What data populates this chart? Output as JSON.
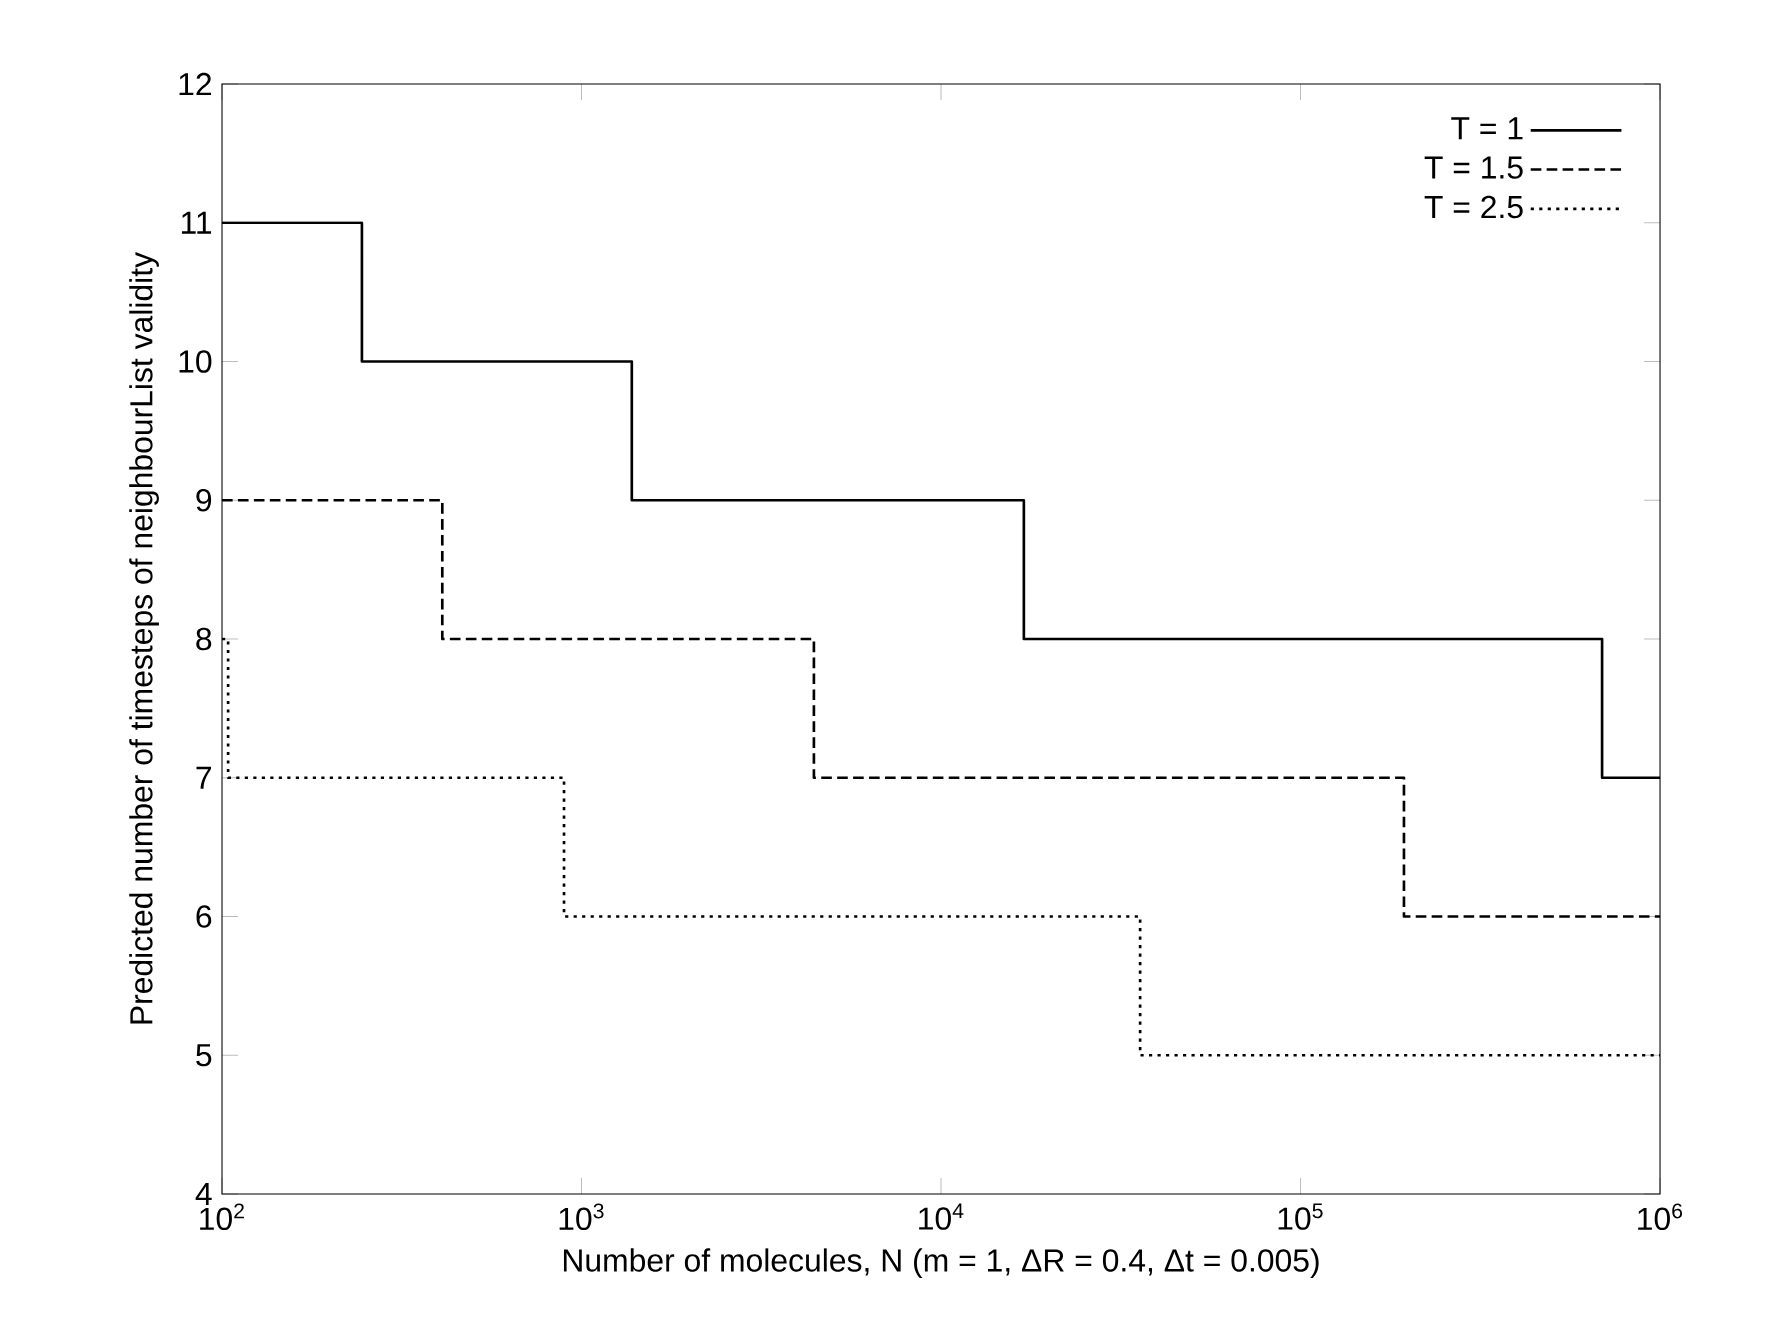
{
  "chart_data": {
    "type": "step",
    "xlabel": "Number of molecules, N  (m = 1, ΔR = 0.4, Δt = 0.005)",
    "ylabel": "Predicted number of timesteps of neighbourList validity",
    "log": "x",
    "xlim": [
      100,
      1000000
    ],
    "ylim": [
      4,
      12
    ],
    "xticks": [
      {
        "value": 100,
        "label": "10$^{2}$"
      },
      {
        "value": 1000,
        "label": "10$^{3}$"
      },
      {
        "value": 10000,
        "label": "10$^{4}$"
      },
      {
        "value": 100000,
        "label": "10$^{5}$"
      },
      {
        "value": 1000000,
        "label": "10$^{6}$"
      }
    ],
    "yticks": [
      4,
      5,
      6,
      7,
      8,
      9,
      10,
      11,
      12
    ],
    "legend": "top right",
    "series": [
      {
        "name": "T = 1",
        "color": "#000000",
        "line_style": "solid",
        "x": [
          100,
          245,
          1380,
          17000,
          690000,
          1000000
        ],
        "values": [
          11,
          10,
          9,
          8,
          7,
          7
        ]
      },
      {
        "name": "T = 1.5",
        "color": "#000000",
        "line_style": "dashed",
        "x": [
          100,
          410,
          4430,
          194000,
          1000000
        ],
        "values": [
          9,
          8,
          7,
          6,
          6
        ]
      },
      {
        "name": "T = 2.5",
        "color": "#000000",
        "line_style": "dotted",
        "x": [
          100,
          104,
          894,
          35800,
          1000000
        ],
        "values": [
          8,
          7,
          6,
          5,
          5
        ]
      }
    ]
  }
}
